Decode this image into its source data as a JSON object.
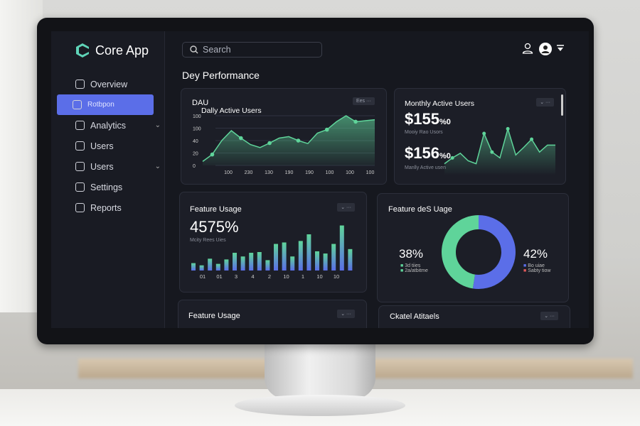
{
  "app": {
    "name": "Core App"
  },
  "search": {
    "placeholder": "Search"
  },
  "page_title": "Dey Performance",
  "sidebar": {
    "items": [
      {
        "label": "Overview",
        "icon": "overview-icon"
      },
      {
        "label": "Rotbpon",
        "icon": "home-icon",
        "active": true
      },
      {
        "label": "Analytics",
        "icon": "analytics-icon",
        "chevron": true
      },
      {
        "label": "Users",
        "icon": "users-icon"
      },
      {
        "label": "Users",
        "icon": "users-group-icon",
        "chevron": true
      },
      {
        "label": "Settings",
        "icon": "gear-icon"
      },
      {
        "label": "Reports",
        "icon": "reports-icon"
      }
    ]
  },
  "colors": {
    "accent": "#5b6ee8",
    "green": "#5fd49a",
    "blue": "#5b6ee8",
    "red": "#e05a5a",
    "bg": "#16181f"
  },
  "dau": {
    "label": "DAU",
    "title": "Dally Active Users",
    "pill": "Ees ···"
  },
  "mau": {
    "title": "Monthly Active Users",
    "value1": "$155",
    "unit1": "%0",
    "sub1": "Mooiy Rao Usors",
    "value2": "$156",
    "unit2": "%0",
    "sub2": "Manlly Active usen",
    "pill": "⌄ ···"
  },
  "feature": {
    "title": "Feature Usage",
    "value": "4575%",
    "sub": "Mcity Rees Uies",
    "pill": "⌄ ···"
  },
  "donut": {
    "title": "Feature deS Uage",
    "left_value": "38%",
    "left_legend": [
      "3d tiies",
      "2a/atbitme"
    ],
    "right_value": "42%",
    "right_legend": [
      "Bo uiae",
      "Sabty tiow"
    ],
    "pill": "⌄ ···"
  },
  "feature2": {
    "title": "Feature Usage",
    "pill": "⌄ ···"
  },
  "bottom_right": {
    "title": "Ckatel Atitaels",
    "pill": "⌄ ···"
  },
  "chart_data": [
    {
      "type": "area",
      "title": "Dally Active Users",
      "y_tick_labels": [
        "0",
        "20",
        "40",
        "100",
        "100"
      ],
      "x_tick_labels": [
        "100",
        "230",
        "130",
        "190",
        "190",
        "100",
        "100",
        "100"
      ],
      "values": [
        8,
        22,
        50,
        70,
        55,
        42,
        36,
        45,
        55,
        58,
        50,
        44,
        65,
        72,
        88,
        100,
        88,
        90,
        92
      ],
      "ylim": [
        0,
        100
      ],
      "grid": true
    },
    {
      "type": "line",
      "title": "Monthly Active Users",
      "values": [
        20,
        30,
        38,
        25,
        20,
        72,
        40,
        30,
        80,
        35,
        48,
        62,
        40,
        52,
        52
      ],
      "ylim": [
        0,
        100
      ]
    },
    {
      "type": "bar",
      "title": "Feature Usage",
      "x_tick_labels": [
        "01",
        "01",
        "3",
        "4",
        "2",
        "10",
        "1",
        "10",
        "10"
      ],
      "values": [
        20,
        14,
        32,
        18,
        30,
        48,
        38,
        48,
        50,
        28,
        72,
        76,
        38,
        80,
        98,
        52,
        46,
        72,
        122,
        58
      ]
    },
    {
      "type": "pie",
      "title": "Feature deS Uage",
      "slices": [
        {
          "label": "38%",
          "value": 38,
          "color": "#5fd49a"
        },
        {
          "label": "42%",
          "value": 42,
          "color": "#5b6ee8"
        }
      ]
    }
  ]
}
